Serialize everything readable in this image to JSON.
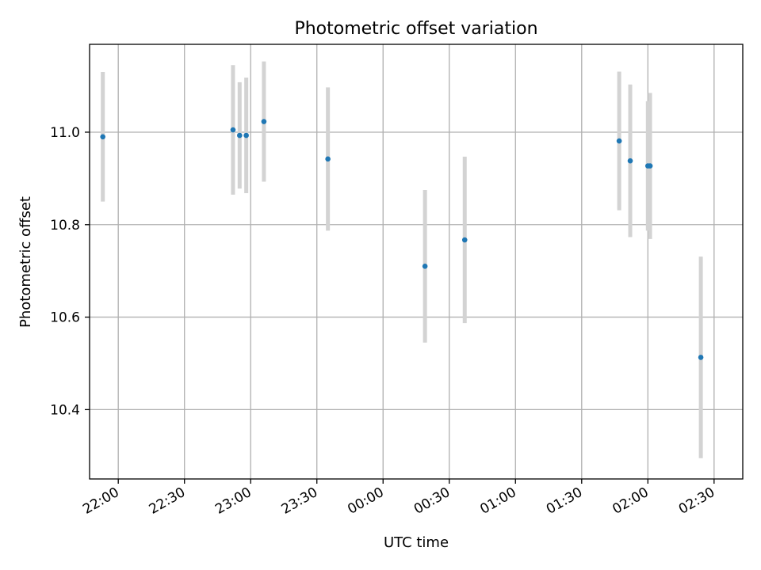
{
  "chart_data": {
    "type": "scatter",
    "title": "Photometric offset variation",
    "xlabel": "UTC time",
    "ylabel": "Photometric offset",
    "x_axis": {
      "kind": "time",
      "range": [
        "21:47",
        "02:43"
      ],
      "ticks": [
        "22:00",
        "22:30",
        "23:00",
        "23:30",
        "00:00",
        "00:30",
        "01:00",
        "01:30",
        "02:00",
        "02:30"
      ]
    },
    "y_axis": {
      "range": [
        10.25,
        11.19
      ],
      "ticks": [
        "10.4",
        "10.6",
        "10.8",
        "11.0"
      ]
    },
    "grid": true,
    "point_color": "#1f77b4",
    "errorbar_color": "#d3d3d3",
    "points": [
      {
        "time": "21:53",
        "y": 10.99,
        "err": 0.14
      },
      {
        "time": "22:52",
        "y": 11.005,
        "err": 0.14
      },
      {
        "time": "22:55",
        "y": 10.993,
        "err": 0.115
      },
      {
        "time": "22:58",
        "y": 10.993,
        "err": 0.125
      },
      {
        "time": "23:06",
        "y": 11.023,
        "err": 0.13
      },
      {
        "time": "23:35",
        "y": 10.942,
        "err": 0.155
      },
      {
        "time": "00:19",
        "y": 10.71,
        "err": 0.165
      },
      {
        "time": "00:37",
        "y": 10.767,
        "err": 0.18
      },
      {
        "time": "01:47",
        "y": 10.981,
        "err": 0.15
      },
      {
        "time": "01:52",
        "y": 10.938,
        "err": 0.165
      },
      {
        "time": "02:00",
        "y": 10.927,
        "err": 0.14
      },
      {
        "time": "02:01",
        "y": 10.927,
        "err": 0.158
      },
      {
        "time": "02:24",
        "y": 10.513,
        "err": 0.218
      }
    ]
  }
}
